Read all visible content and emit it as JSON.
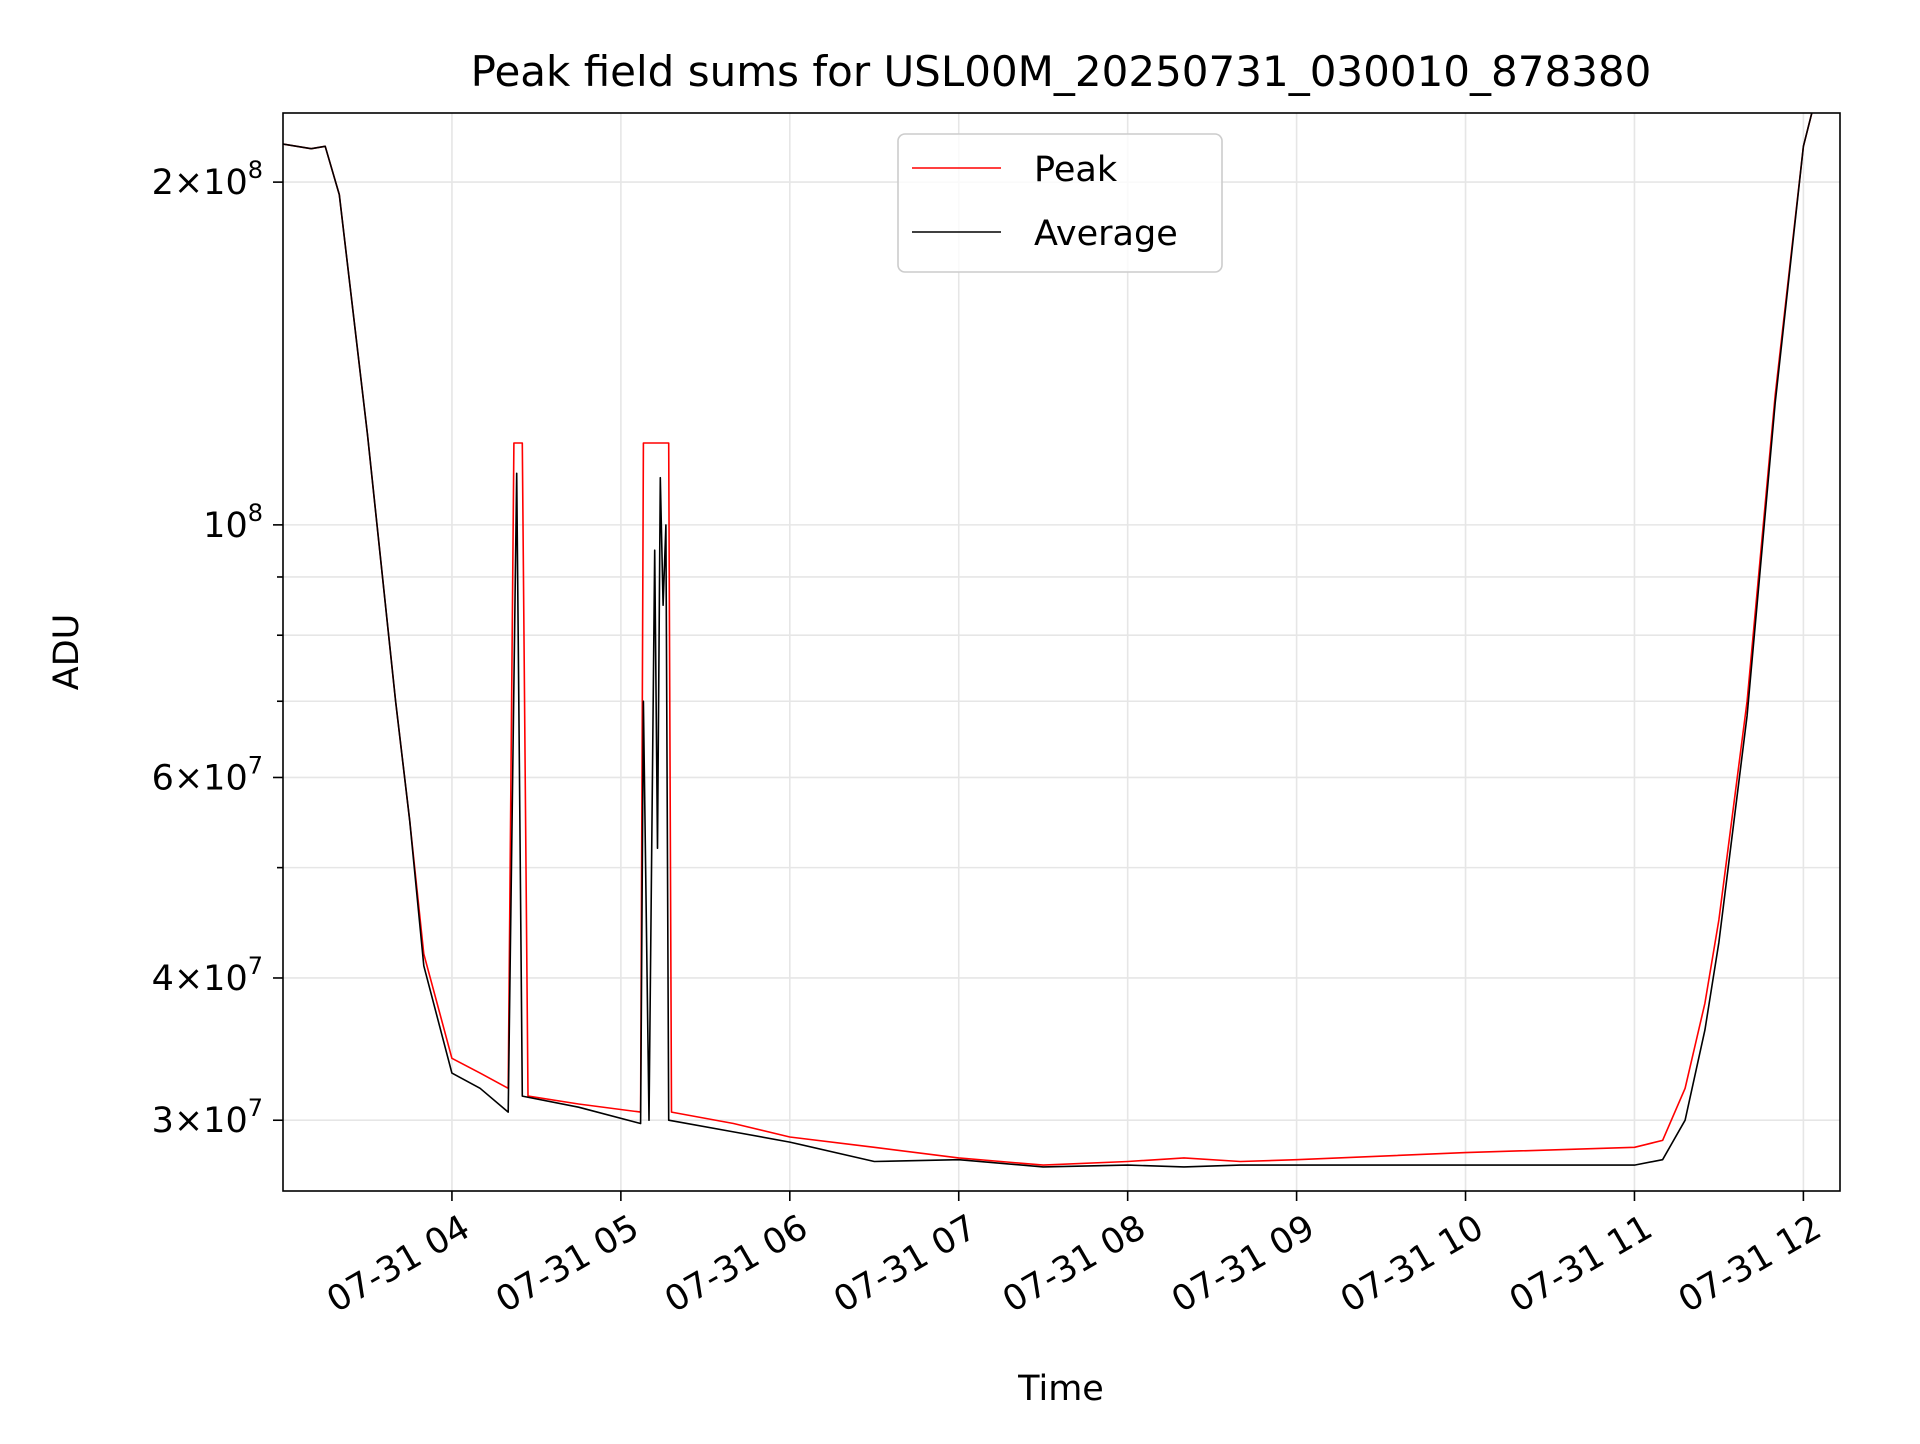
{
  "chart_data": {
    "type": "line",
    "title": "Peak field sums for USL00M_20250731_030010_878380",
    "xlabel": "Time",
    "ylabel": "ADU",
    "yscale": "log",
    "grid": true,
    "grid_minor": true,
    "legend_position": "upper center",
    "xlim": [
      "2025-07-31T03:00",
      "2025-07-31T12:13"
    ],
    "ylim": [
      26000000,
      230000000
    ],
    "x_ticks": [
      {
        "value": "2025-07-31T04:00",
        "label": "07-31 04"
      },
      {
        "value": "2025-07-31T05:00",
        "label": "07-31 05"
      },
      {
        "value": "2025-07-31T06:00",
        "label": "07-31 06"
      },
      {
        "value": "2025-07-31T07:00",
        "label": "07-31 07"
      },
      {
        "value": "2025-07-31T08:00",
        "label": "07-31 08"
      },
      {
        "value": "2025-07-31T09:00",
        "label": "07-31 09"
      },
      {
        "value": "2025-07-31T10:00",
        "label": "07-31 10"
      },
      {
        "value": "2025-07-31T11:00",
        "label": "07-31 11"
      },
      {
        "value": "2025-07-31T12:00",
        "label": "07-31 12"
      }
    ],
    "y_ticks_major": [
      {
        "value": 30000000,
        "mant": "3",
        "exp": "7"
      },
      {
        "value": 40000000,
        "mant": "4",
        "exp": "7"
      },
      {
        "value": 60000000,
        "mant": "6",
        "exp": "7"
      },
      {
        "value": 100000000,
        "mant": "",
        "exp": "8"
      },
      {
        "value": 200000000,
        "mant": "2",
        "exp": "8"
      }
    ],
    "y_ticks_minor": [
      50000000,
      70000000,
      80000000,
      90000000
    ],
    "series": [
      {
        "name": "Peak",
        "color": "#ff0000",
        "points": [
          [
            "2025-07-31T03:00",
            216000000
          ],
          [
            "2025-07-31T03:10",
            214000000
          ],
          [
            "2025-07-31T03:15",
            215000000
          ],
          [
            "2025-07-31T03:20",
            195000000
          ],
          [
            "2025-07-31T03:30",
            120000000
          ],
          [
            "2025-07-31T03:40",
            70000000
          ],
          [
            "2025-07-31T03:45",
            55000000
          ],
          [
            "2025-07-31T03:50",
            42000000
          ],
          [
            "2025-07-31T04:00",
            34000000
          ],
          [
            "2025-07-31T04:10",
            33000000
          ],
          [
            "2025-07-31T04:20",
            32000000
          ],
          [
            "2025-07-31T04:22",
            118000000
          ],
          [
            "2025-07-31T04:25",
            118000000
          ],
          [
            "2025-07-31T04:27",
            31500000
          ],
          [
            "2025-07-31T04:45",
            31000000
          ],
          [
            "2025-07-31T05:07",
            30500000
          ],
          [
            "2025-07-31T05:08",
            118000000
          ],
          [
            "2025-07-31T05:17",
            118000000
          ],
          [
            "2025-07-31T05:18",
            30500000
          ],
          [
            "2025-07-31T05:40",
            29800000
          ],
          [
            "2025-07-31T06:00",
            29000000
          ],
          [
            "2025-07-31T06:30",
            28400000
          ],
          [
            "2025-07-31T07:00",
            27800000
          ],
          [
            "2025-07-31T07:30",
            27400000
          ],
          [
            "2025-07-31T08:00",
            27600000
          ],
          [
            "2025-07-31T08:20",
            27800000
          ],
          [
            "2025-07-31T08:40",
            27600000
          ],
          [
            "2025-07-31T09:00",
            27700000
          ],
          [
            "2025-07-31T10:00",
            28100000
          ],
          [
            "2025-07-31T11:00",
            28400000
          ],
          [
            "2025-07-31T11:10",
            28800000
          ],
          [
            "2025-07-31T11:18",
            32000000
          ],
          [
            "2025-07-31T11:25",
            38000000
          ],
          [
            "2025-07-31T11:30",
            45000000
          ],
          [
            "2025-07-31T11:40",
            70000000
          ],
          [
            "2025-07-31T11:50",
            130000000
          ],
          [
            "2025-07-31T12:00",
            215000000
          ],
          [
            "2025-07-31T12:03",
            230000000
          ]
        ]
      },
      {
        "name": "Average",
        "color": "#000000",
        "points": [
          [
            "2025-07-31T03:00",
            216000000
          ],
          [
            "2025-07-31T03:10",
            214000000
          ],
          [
            "2025-07-31T03:15",
            215000000
          ],
          [
            "2025-07-31T03:20",
            195000000
          ],
          [
            "2025-07-31T03:30",
            120000000
          ],
          [
            "2025-07-31T03:40",
            70000000
          ],
          [
            "2025-07-31T03:45",
            55000000
          ],
          [
            "2025-07-31T03:50",
            41000000
          ],
          [
            "2025-07-31T04:00",
            33000000
          ],
          [
            "2025-07-31T04:10",
            32000000
          ],
          [
            "2025-07-31T04:20",
            30500000
          ],
          [
            "2025-07-31T04:23",
            111000000
          ],
          [
            "2025-07-31T04:24",
            60000000
          ],
          [
            "2025-07-31T04:25",
            31500000
          ],
          [
            "2025-07-31T04:45",
            30800000
          ],
          [
            "2025-07-31T05:07",
            29800000
          ],
          [
            "2025-07-31T05:08",
            70000000
          ],
          [
            "2025-07-31T05:10",
            30000000
          ],
          [
            "2025-07-31T05:12",
            95000000
          ],
          [
            "2025-07-31T05:13",
            52000000
          ],
          [
            "2025-07-31T05:14",
            110000000
          ],
          [
            "2025-07-31T05:15",
            85000000
          ],
          [
            "2025-07-31T05:16",
            100000000
          ],
          [
            "2025-07-31T05:17",
            30000000
          ],
          [
            "2025-07-31T05:40",
            29300000
          ],
          [
            "2025-07-31T06:00",
            28700000
          ],
          [
            "2025-07-31T06:30",
            27600000
          ],
          [
            "2025-07-31T07:00",
            27700000
          ],
          [
            "2025-07-31T07:30",
            27300000
          ],
          [
            "2025-07-31T08:00",
            27400000
          ],
          [
            "2025-07-31T08:20",
            27300000
          ],
          [
            "2025-07-31T08:40",
            27400000
          ],
          [
            "2025-07-31T09:00",
            27400000
          ],
          [
            "2025-07-31T10:00",
            27400000
          ],
          [
            "2025-07-31T11:00",
            27400000
          ],
          [
            "2025-07-31T11:10",
            27700000
          ],
          [
            "2025-07-31T11:18",
            30000000
          ],
          [
            "2025-07-31T11:25",
            36000000
          ],
          [
            "2025-07-31T11:30",
            43000000
          ],
          [
            "2025-07-31T11:40",
            68000000
          ],
          [
            "2025-07-31T11:50",
            128000000
          ],
          [
            "2025-07-31T12:00",
            215000000
          ],
          [
            "2025-07-31T12:03",
            230000000
          ]
        ]
      }
    ]
  }
}
